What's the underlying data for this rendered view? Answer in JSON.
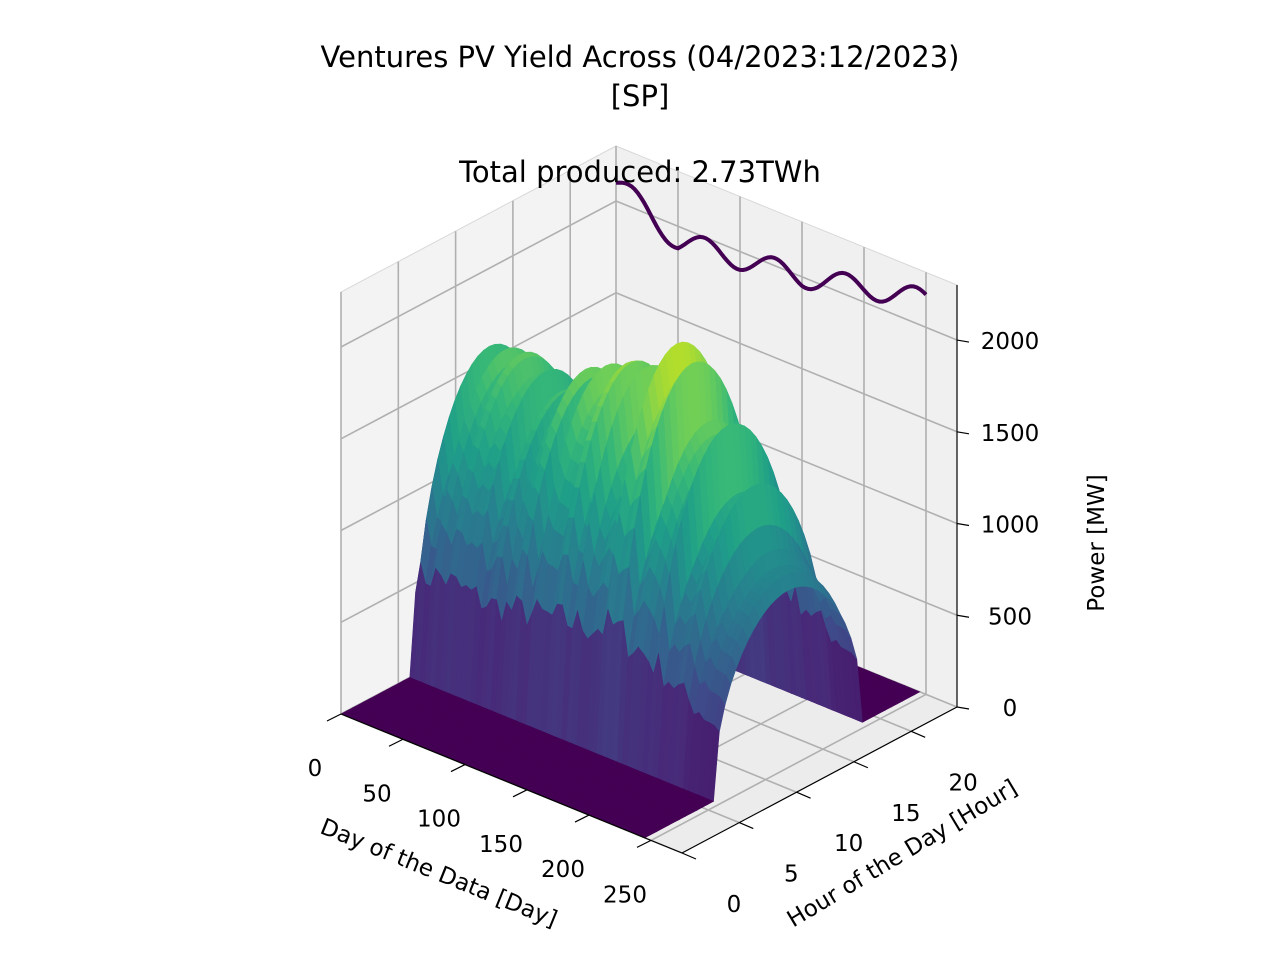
{
  "chart_data": {
    "type": "surface3d",
    "title_line1": "Ventures PV Yield Across (04/2023:12/2023)",
    "title_line2": "[SP]",
    "subtitle": "Total produced: 2.73TWh",
    "xlabel": "Day of the Data [Day]",
    "ylabel": "Hour of the Day [Hour]",
    "zlabel": "Power [MW]",
    "x_ticks": [
      "0",
      "50",
      "100",
      "150",
      "200",
      "250"
    ],
    "y_ticks": [
      "0",
      "5",
      "10",
      "15",
      "20"
    ],
    "z_ticks": [
      "0",
      "500",
      "1000",
      "1500",
      "2000"
    ],
    "xlim": [
      0,
      275
    ],
    "ylim": [
      0,
      24
    ],
    "zlim": [
      0,
      2300
    ],
    "colormap": "viridis",
    "grid": true,
    "peak_power_mw": 2180,
    "daylight_hours": [
      6,
      19
    ],
    "daily_peak_profile": {
      "days": [
        0,
        20,
        40,
        60,
        80,
        100,
        120,
        140,
        160,
        180,
        200,
        220,
        245
      ],
      "peak_mw": [
        1600,
        1780,
        1700,
        1640,
        1720,
        1800,
        1880,
        1960,
        2100,
        1900,
        1700,
        1400,
        1150
      ]
    },
    "back_wall_line": {
      "color": "#440154",
      "x": [
        0,
        50,
        100,
        150,
        200,
        250
      ],
      "z": [
        2100,
        1920,
        1960,
        2000,
        2080,
        2150
      ]
    }
  }
}
